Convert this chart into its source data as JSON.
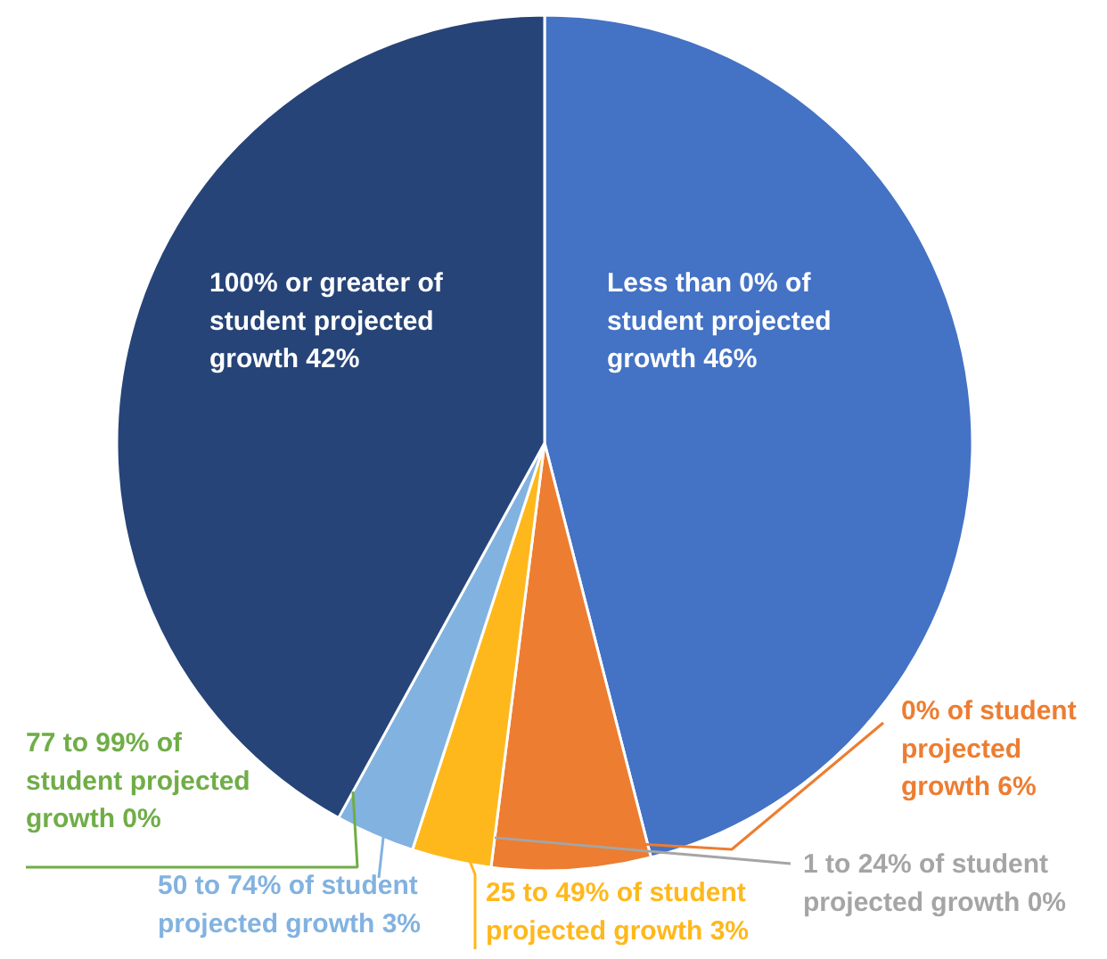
{
  "chart_data": {
    "type": "pie",
    "categories": [
      "Less than 0% of student projected growth",
      "0% of student projected growth",
      "1 to 24% of student projected growth",
      "25 to 49% of student projected growth",
      "50 to 74% of student projected growth",
      "77 to 99% of student projected growth",
      "100% or greater of student projected growth"
    ],
    "values": [
      46,
      6,
      0,
      3,
      3,
      0,
      42
    ],
    "value_labels": [
      "46%",
      "6%",
      "0%",
      "3%",
      "3%",
      "0%",
      "42%"
    ],
    "colors": [
      "#4472c4",
      "#ed7d31",
      "#a5a5a5",
      "#ffb81c",
      "#82b2e0",
      "#70ad47",
      "#264478"
    ]
  }
}
